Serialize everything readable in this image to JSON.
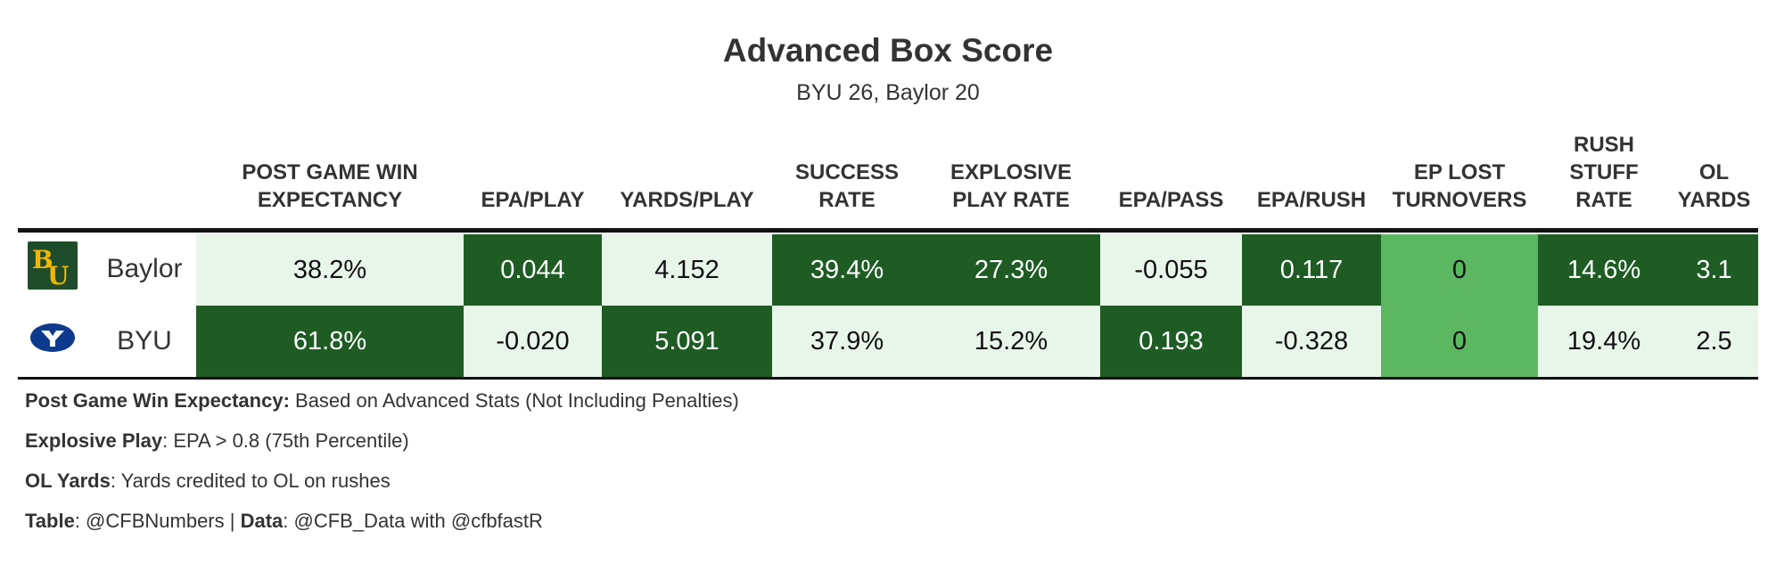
{
  "title": "Advanced Box Score",
  "subtitle": "BYU 26, Baylor 20",
  "colors": {
    "dark": "#1e5c24",
    "mid": "#5cb860",
    "light": "#e8f5e9",
    "baylor_logo_bg": "#1f4d2b",
    "baylor_logo_fg": "#f2b705",
    "byu_logo": "#0d3a8c"
  },
  "chart_data": {
    "type": "table",
    "columns": [
      "POST GAME WIN\nEXPECTANCY",
      "EPA/PLAY",
      "YARDS/PLAY",
      "SUCCESS\nRATE",
      "EXPLOSIVE\nPLAY RATE",
      "EPA/PASS",
      "EPA/RUSH",
      "EP LOST\nTURNOVERS",
      "RUSH\nSTUFF\nRATE",
      "OL\nYARDS"
    ],
    "rows": [
      {
        "team": "Baylor",
        "logo_icon": "baylor-bu-logo",
        "values": [
          "38.2%",
          "0.044",
          "4.152",
          "39.4%",
          "27.3%",
          "-0.055",
          "0.117",
          "0",
          "14.6%",
          "3.1"
        ],
        "shades": [
          "light",
          "dark",
          "light",
          "dark",
          "dark",
          "light",
          "dark",
          "mid",
          "dark",
          "dark"
        ]
      },
      {
        "team": "BYU",
        "logo_icon": "byu-y-oval-logo",
        "values": [
          "61.8%",
          "-0.020",
          "5.091",
          "37.9%",
          "15.2%",
          "0.193",
          "-0.328",
          "0",
          "19.4%",
          "2.5"
        ],
        "shades": [
          "dark",
          "light",
          "dark",
          "light",
          "light",
          "dark",
          "light",
          "mid",
          "light",
          "light"
        ]
      }
    ]
  },
  "notes": [
    {
      "bold": "Post Game Win Expectancy:",
      "text": " Based on Advanced Stats (Not Including Penalties)"
    },
    {
      "bold": "Explosive Play",
      "text": ": EPA > 0.8 (75th Percentile)"
    },
    {
      "bold": "OL Yards",
      "text": ": Yards credited to OL on rushes"
    }
  ],
  "credits": {
    "table_label": "Table",
    "table_value": ": @CFBNumbers | ",
    "data_label": "Data",
    "data_value": ": @CFB_Data with @cfbfastR"
  }
}
